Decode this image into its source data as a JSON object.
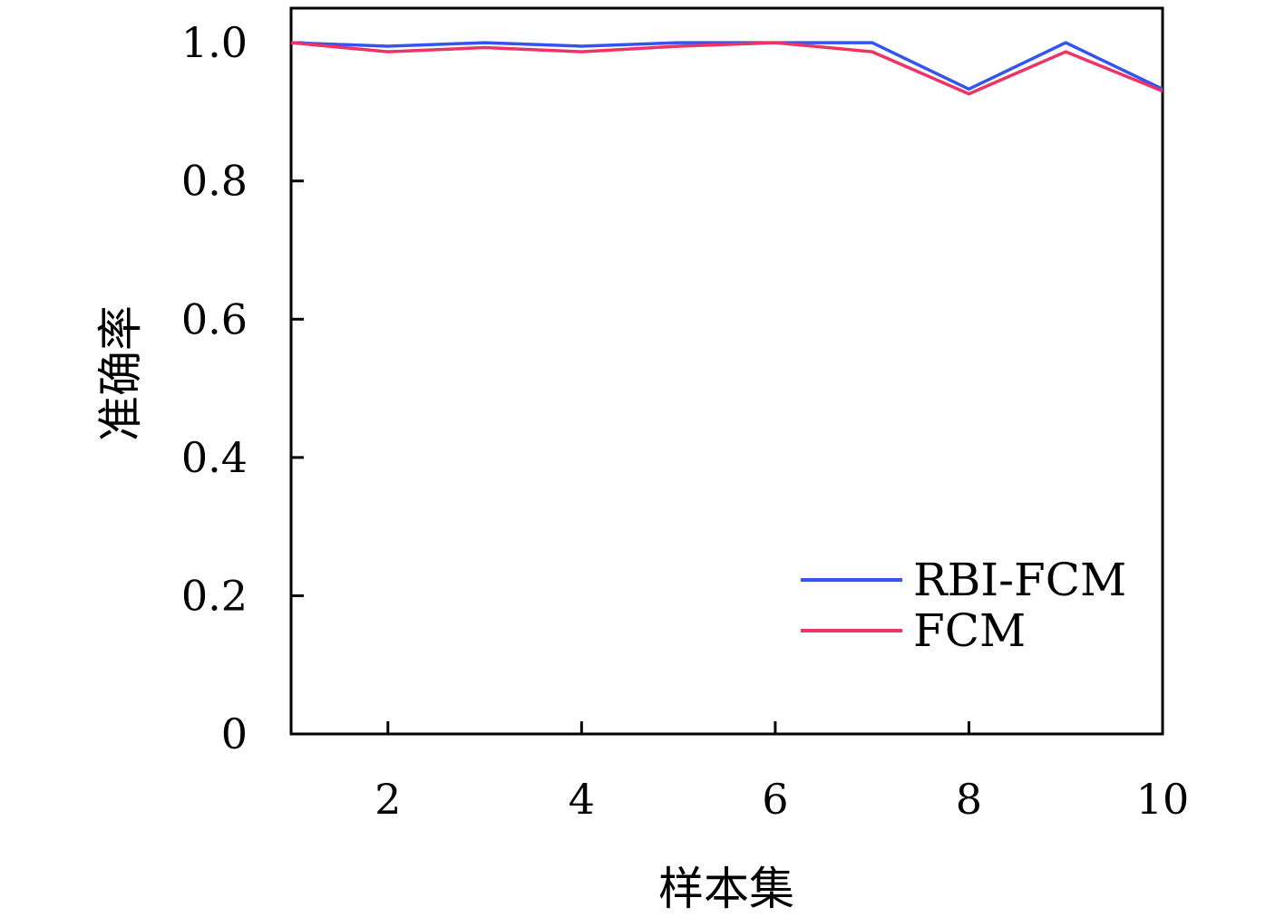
{
  "chart_data": {
    "type": "line",
    "xlabel": "样本集",
    "ylabel": "准确率",
    "xlim": [
      1,
      10
    ],
    "ylim": [
      0,
      1.05
    ],
    "x": [
      1,
      2,
      3,
      4,
      5,
      6,
      7,
      8,
      9,
      10
    ],
    "x_ticks": [
      2,
      4,
      6,
      8,
      10
    ],
    "y_ticks": [
      0,
      0.2,
      0.4,
      0.6,
      0.8,
      1.0
    ],
    "y_tick_labels": [
      "0",
      "0.2",
      "0.4",
      "0.6",
      "0.8",
      "1.0"
    ],
    "grid": false,
    "legend_position": "bottom-right",
    "series": [
      {
        "name": "RBI-FCM",
        "color": "#3355ee",
        "values": [
          1.0,
          0.995,
          1.0,
          0.995,
          1.0,
          1.0,
          1.0,
          0.933,
          1.0,
          0.933
        ]
      },
      {
        "name": "FCM",
        "color": "#ee3366",
        "values": [
          1.0,
          0.987,
          0.993,
          0.987,
          0.995,
          1.0,
          0.987,
          0.926,
          0.987,
          0.93
        ]
      }
    ]
  }
}
